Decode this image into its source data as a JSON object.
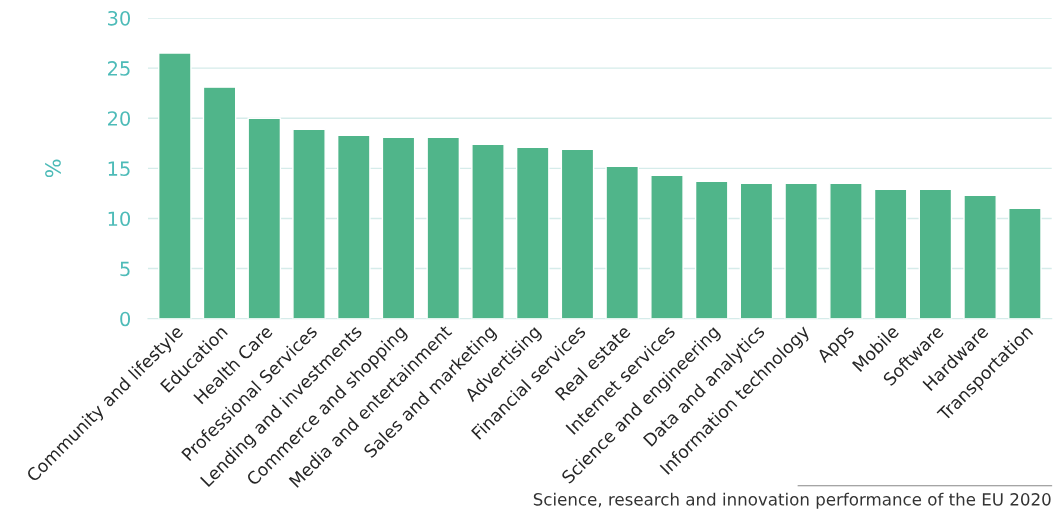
{
  "chart_data": {
    "type": "bar",
    "ylabel": "%",
    "categories": [
      "Community and lifestyle",
      "Education",
      "Health Care",
      "Professional Services",
      "Lending and investments",
      "Commerce and shopping",
      "Media and entertainment",
      "Sales and marketing",
      "Advertising",
      "Financial services",
      "Real estate",
      "Internet services",
      "Science and engineering",
      "Data and analytics",
      "Information technology",
      "Apps",
      "Mobile",
      "Software",
      "Hardware",
      "Transportation"
    ],
    "values": [
      26.5,
      23.1,
      20.0,
      18.9,
      18.3,
      18.1,
      18.1,
      17.4,
      17.1,
      16.9,
      15.2,
      14.3,
      13.7,
      13.5,
      13.5,
      13.5,
      12.9,
      12.9,
      12.3,
      11.0
    ],
    "color": "#50b58a",
    "ylim": [
      0,
      30
    ],
    "yticks": [
      0,
      5,
      10,
      15,
      20,
      25,
      30
    ],
    "grid": "y",
    "annotations": [
      "Science, research and innovation performance of the EU 2020"
    ]
  }
}
